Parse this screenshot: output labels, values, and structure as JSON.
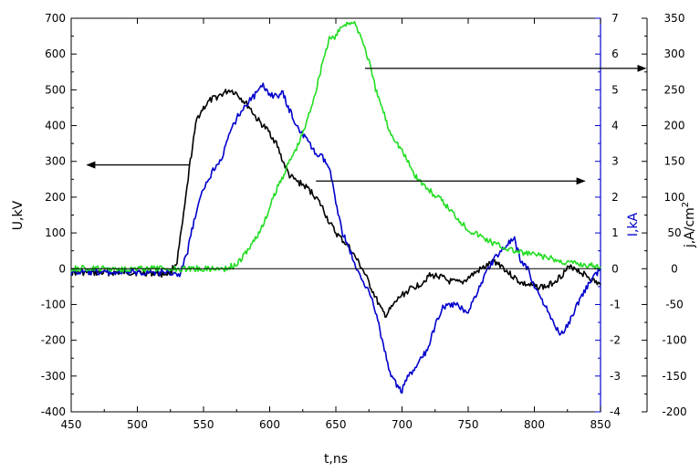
{
  "chart_data": {
    "type": "line",
    "x_axis": {
      "label": "t,ns",
      "range": [
        450,
        850
      ],
      "ticks": [
        450,
        500,
        550,
        600,
        650,
        700,
        750,
        800,
        850
      ]
    },
    "y_axes": [
      {
        "id": "U",
        "label": "U,kV",
        "side": "left",
        "color": "#000000",
        "range": [
          -400,
          700
        ],
        "ticks": [
          -400,
          -300,
          -200,
          -100,
          0,
          100,
          200,
          300,
          400,
          500,
          600,
          700
        ]
      },
      {
        "id": "I",
        "label": "I,kA",
        "side": "right-inner",
        "color": "#0000cc",
        "range": [
          -4,
          7
        ],
        "ticks": [
          -4,
          -3,
          -2,
          -1,
          0,
          1,
          2,
          3,
          4,
          5,
          6,
          7
        ]
      },
      {
        "id": "j",
        "label": "j,A/cm",
        "label_superscript": "2",
        "side": "right-outer",
        "color": "#000000",
        "range": [
          -200,
          350
        ],
        "ticks": [
          -200,
          -150,
          -100,
          -50,
          0,
          50,
          100,
          150,
          200,
          250,
          300,
          350
        ]
      }
    ],
    "series": [
      {
        "axis": "U",
        "color": "#000000",
        "points": [
          [
            450,
            -10
          ],
          [
            470,
            -12
          ],
          [
            490,
            -10
          ],
          [
            510,
            -12
          ],
          [
            520,
            -15
          ],
          [
            525,
            -10
          ],
          [
            530,
            20
          ],
          [
            535,
            150
          ],
          [
            540,
            300
          ],
          [
            545,
            420
          ],
          [
            550,
            450
          ],
          [
            555,
            470
          ],
          [
            560,
            480
          ],
          [
            565,
            490
          ],
          [
            570,
            500
          ],
          [
            575,
            490
          ],
          [
            580,
            470
          ],
          [
            585,
            450
          ],
          [
            590,
            420
          ],
          [
            595,
            400
          ],
          [
            600,
            380
          ],
          [
            605,
            350
          ],
          [
            610,
            300
          ],
          [
            615,
            260
          ],
          [
            620,
            245
          ],
          [
            625,
            235
          ],
          [
            630,
            220
          ],
          [
            635,
            200
          ],
          [
            640,
            170
          ],
          [
            645,
            130
          ],
          [
            650,
            100
          ],
          [
            655,
            80
          ],
          [
            660,
            60
          ],
          [
            665,
            30
          ],
          [
            670,
            0
          ],
          [
            675,
            -40
          ],
          [
            680,
            -80
          ],
          [
            685,
            -120
          ],
          [
            688,
            -130
          ],
          [
            692,
            -110
          ],
          [
            698,
            -80
          ],
          [
            705,
            -60
          ],
          [
            715,
            -40
          ],
          [
            720,
            -20
          ],
          [
            728,
            -20
          ],
          [
            735,
            -35
          ],
          [
            745,
            -40
          ],
          [
            752,
            -20
          ],
          [
            758,
            -5
          ],
          [
            765,
            10
          ],
          [
            770,
            20
          ],
          [
            775,
            10
          ],
          [
            780,
            -10
          ],
          [
            790,
            -40
          ],
          [
            800,
            -50
          ],
          [
            810,
            -50
          ],
          [
            820,
            -20
          ],
          [
            825,
            0
          ],
          [
            830,
            5
          ],
          [
            835,
            -10
          ],
          [
            840,
            -20
          ],
          [
            845,
            -35
          ],
          [
            850,
            -45
          ]
        ]
      },
      {
        "axis": "I",
        "color": "#0000cc",
        "points": [
          [
            450,
            -0.1
          ],
          [
            470,
            -0.1
          ],
          [
            490,
            -0.1
          ],
          [
            510,
            -0.1
          ],
          [
            525,
            -0.1
          ],
          [
            532,
            -0.2
          ],
          [
            538,
            0.5
          ],
          [
            542,
            1.2
          ],
          [
            548,
            2.0
          ],
          [
            552,
            2.4
          ],
          [
            558,
            2.8
          ],
          [
            565,
            3.2
          ],
          [
            570,
            3.8
          ],
          [
            575,
            4.2
          ],
          [
            580,
            4.5
          ],
          [
            585,
            4.7
          ],
          [
            590,
            4.9
          ],
          [
            595,
            5.1
          ],
          [
            600,
            4.9
          ],
          [
            605,
            4.8
          ],
          [
            610,
            4.9
          ],
          [
            614,
            4.5
          ],
          [
            618,
            4.2
          ],
          [
            622,
            3.9
          ],
          [
            628,
            3.6
          ],
          [
            635,
            3.2
          ],
          [
            640,
            3.1
          ],
          [
            645,
            2.8
          ],
          [
            650,
            1.9
          ],
          [
            655,
            1.0
          ],
          [
            660,
            0.6
          ],
          [
            665,
            0.0
          ],
          [
            670,
            -0.3
          ],
          [
            675,
            -0.6
          ],
          [
            680,
            -1.2
          ],
          [
            685,
            -2.0
          ],
          [
            690,
            -2.8
          ],
          [
            695,
            -3.2
          ],
          [
            700,
            -3.4
          ],
          [
            705,
            -3.0
          ],
          [
            710,
            -2.8
          ],
          [
            715,
            -2.5
          ],
          [
            720,
            -2.2
          ],
          [
            725,
            -1.6
          ],
          [
            730,
            -1.1
          ],
          [
            740,
            -1.0
          ],
          [
            750,
            -1.2
          ],
          [
            755,
            -0.8
          ],
          [
            760,
            -0.4
          ],
          [
            765,
            0.0
          ],
          [
            770,
            0.3
          ],
          [
            775,
            0.5
          ],
          [
            780,
            0.7
          ],
          [
            785,
            0.8
          ],
          [
            790,
            0.2
          ],
          [
            795,
            0.0
          ],
          [
            800,
            -0.5
          ],
          [
            805,
            -0.8
          ],
          [
            810,
            -1.2
          ],
          [
            815,
            -1.6
          ],
          [
            820,
            -1.8
          ],
          [
            825,
            -1.6
          ],
          [
            830,
            -1.2
          ],
          [
            835,
            -0.8
          ],
          [
            840,
            -0.5
          ],
          [
            845,
            -0.2
          ],
          [
            850,
            0.0
          ]
        ]
      },
      {
        "axis": "j",
        "color": "#22dd22",
        "points": [
          [
            450,
            0
          ],
          [
            470,
            0
          ],
          [
            490,
            0
          ],
          [
            510,
            0
          ],
          [
            530,
            0
          ],
          [
            550,
            0
          ],
          [
            565,
            0
          ],
          [
            575,
            5
          ],
          [
            585,
            30
          ],
          [
            595,
            60
          ],
          [
            605,
            110
          ],
          [
            615,
            150
          ],
          [
            622,
            175
          ],
          [
            628,
            205
          ],
          [
            635,
            250
          ],
          [
            640,
            290
          ],
          [
            645,
            320
          ],
          [
            650,
            325
          ],
          [
            655,
            340
          ],
          [
            660,
            345
          ],
          [
            665,
            340
          ],
          [
            670,
            320
          ],
          [
            675,
            290
          ],
          [
            680,
            250
          ],
          [
            685,
            225
          ],
          [
            690,
            195
          ],
          [
            695,
            180
          ],
          [
            700,
            165
          ],
          [
            710,
            130
          ],
          [
            720,
            110
          ],
          [
            730,
            95
          ],
          [
            740,
            75
          ],
          [
            750,
            55
          ],
          [
            760,
            45
          ],
          [
            770,
            35
          ],
          [
            780,
            28
          ],
          [
            790,
            22
          ],
          [
            800,
            20
          ],
          [
            810,
            15
          ],
          [
            820,
            10
          ],
          [
            830,
            8
          ],
          [
            840,
            5
          ],
          [
            850,
            3
          ]
        ]
      }
    ],
    "reference_lines": [
      {
        "axis": "U",
        "value": 0,
        "x_range": [
          450,
          850
        ]
      }
    ],
    "annotations": [
      {
        "type": "arrow",
        "axis": "U",
        "y": 290,
        "x_from": 540,
        "x_to": 462
      },
      {
        "type": "arrow",
        "axis": "U",
        "y": 245,
        "x_from": 635,
        "x_to": 838
      },
      {
        "type": "arrow",
        "axis": "U",
        "y": 560,
        "x_from": 672,
        "x_to": 884
      }
    ]
  }
}
